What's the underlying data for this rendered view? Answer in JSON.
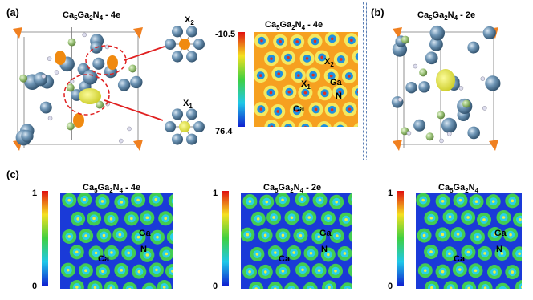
{
  "panel_a": {
    "label": "(a)",
    "structure_title": [
      "Ca",
      "5",
      "Ga",
      "2",
      "N",
      "4",
      " - 4e"
    ],
    "x2_label": [
      "X",
      "2"
    ],
    "x1_label": [
      "X",
      "1"
    ],
    "colorbar_top": "-10.5",
    "colorbar_bottom": "76.4",
    "map_title": [
      "Ca",
      "5",
      "Ga",
      "2",
      "N",
      "4",
      " - 4e"
    ],
    "map_labels": {
      "x2": [
        "X",
        "2"
      ],
      "x1": [
        "X",
        "1"
      ],
      "ga": "Ga",
      "n": "N",
      "ca": "Ca"
    }
  },
  "panel_b": {
    "label": "(b)",
    "title": [
      "Ca",
      "5",
      "Ga",
      "2",
      "N",
      "4",
      " - 2e"
    ]
  },
  "panel_c": {
    "label": "(c)",
    "maps": [
      {
        "title": [
          "Ca",
          "5",
          "Ga",
          "2",
          "N",
          "4",
          " - 4e"
        ],
        "scale_top": "1",
        "scale_bottom": "0",
        "ga": "Ga",
        "n": "N",
        "ca": "Ca"
      },
      {
        "title": [
          "Ca",
          "5",
          "Ga",
          "2",
          "N",
          "4",
          " - 2e"
        ],
        "scale_top": "1",
        "scale_bottom": "0",
        "ga": "Ga",
        "n": "N",
        "ca": "Ca"
      },
      {
        "title": [
          "Ca",
          "5",
          "Ga",
          "2",
          "N",
          "4"
        ],
        "scale_top": "1",
        "scale_bottom": "0",
        "ga": "Ga",
        "n": "N",
        "ca": "Ca"
      }
    ]
  }
}
